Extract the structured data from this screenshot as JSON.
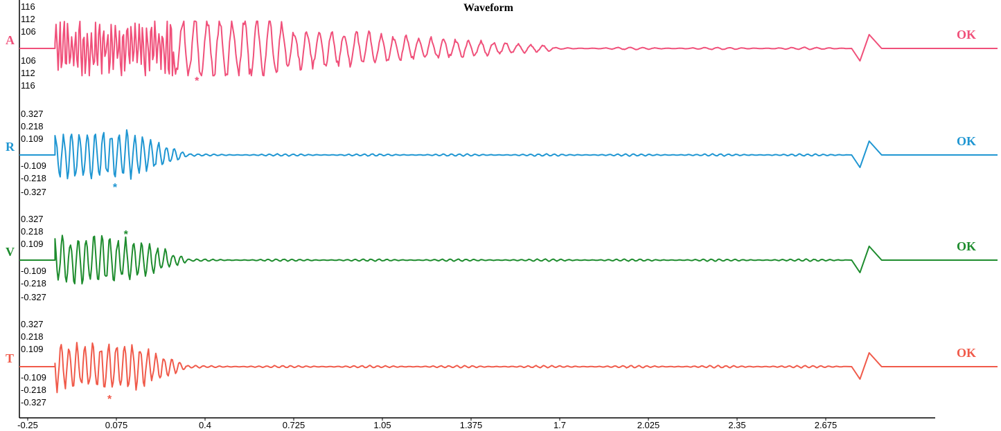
{
  "chart_data": {
    "type": "line",
    "title": "Waveform",
    "xlabel": "",
    "ylabel": "",
    "x_ticks": [
      "-0.25",
      "0.075",
      "0.4",
      "0.725",
      "1.05",
      "1.375",
      "1.7",
      "2.025",
      "2.35",
      "2.675"
    ],
    "xlim": [
      -0.25,
      3.0
    ],
    "grid": false,
    "channels": [
      {
        "name": "A",
        "color": "#f0507a",
        "y_ticks_top": [
          "116",
          "112",
          "106"
        ],
        "y_ticks_bottom": [
          "106",
          "112",
          "116"
        ],
        "ylim": [
          -120,
          120
        ],
        "status": "OK",
        "marker": "*",
        "marker_x": 0.37,
        "marker_side": "below",
        "calibration_pulse_x": [
          2.77,
          2.88
        ]
      },
      {
        "name": "R",
        "color": "#1f96d2",
        "y_ticks_top": [
          "0.327",
          "0.218",
          "0.109"
        ],
        "y_ticks_bottom": [
          "-0.109",
          "-0.218",
          "-0.327"
        ],
        "ylim": [
          -0.35,
          0.35
        ],
        "status": "OK",
        "marker": "*",
        "marker_x": 0.07,
        "marker_side": "below",
        "calibration_pulse_x": [
          2.77,
          2.88
        ]
      },
      {
        "name": "V",
        "color": "#1e8c2e",
        "y_ticks_top": [
          "0.327",
          "0.218",
          "0.109"
        ],
        "y_ticks_bottom": [
          "-0.109",
          "-0.218",
          "-0.327"
        ],
        "ylim": [
          -0.35,
          0.35
        ],
        "status": "OK",
        "marker": "*",
        "marker_x": 0.11,
        "marker_side": "above",
        "calibration_pulse_x": [
          2.77,
          2.88
        ]
      },
      {
        "name": "T",
        "color": "#f05a4a",
        "y_ticks_top": [
          "0.327",
          "0.218",
          "0.109"
        ],
        "y_ticks_bottom": [
          "-0.109",
          "-0.218",
          "-0.327"
        ],
        "ylim": [
          -0.35,
          0.35
        ],
        "status": "OK",
        "marker": "*",
        "marker_x": 0.05,
        "marker_side": "below",
        "calibration_pulse_x": [
          2.77,
          2.88
        ]
      }
    ]
  }
}
